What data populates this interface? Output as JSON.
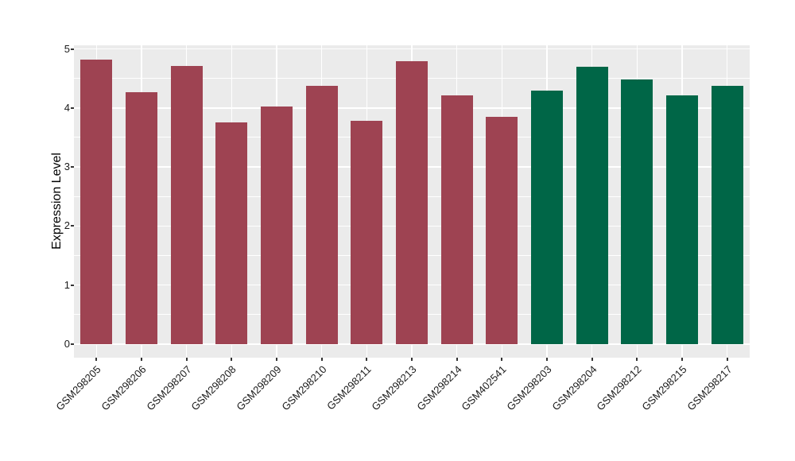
{
  "colors": {
    "group1_bar": "#9E4352",
    "group2_bar": "#006647",
    "panel_background": "#EBEBEB",
    "gridline": "#FFFFFF",
    "axis_tick": "#333333",
    "axis_text": "#1A1A1A"
  },
  "chart_data": {
    "type": "bar",
    "title": "",
    "xlabel": "",
    "ylabel": "Expression Level",
    "ylim": [
      0,
      5.06
    ],
    "yticks": [
      0,
      1,
      2,
      3,
      4,
      5
    ],
    "legend": "none",
    "grid": {
      "horizontal_major": true,
      "horizontal_minor": true,
      "vertical_major_at_category_centers": true
    },
    "categories": [
      "GSM298205",
      "GSM298206",
      "GSM298207",
      "GSM298208",
      "GSM298209",
      "GSM298210",
      "GSM298211",
      "GSM298213",
      "GSM298214",
      "GSM402541",
      "GSM298203",
      "GSM298204",
      "GSM298212",
      "GSM298215",
      "GSM298217"
    ],
    "values": [
      4.82,
      4.26,
      4.71,
      3.76,
      4.03,
      4.37,
      3.78,
      4.79,
      4.21,
      3.85,
      4.3,
      4.7,
      4.48,
      4.21,
      4.37
    ],
    "bar_colors": [
      "#9E4352",
      "#9E4352",
      "#9E4352",
      "#9E4352",
      "#9E4352",
      "#9E4352",
      "#9E4352",
      "#9E4352",
      "#9E4352",
      "#9E4352",
      "#006647",
      "#006647",
      "#006647",
      "#006647",
      "#006647"
    ]
  }
}
